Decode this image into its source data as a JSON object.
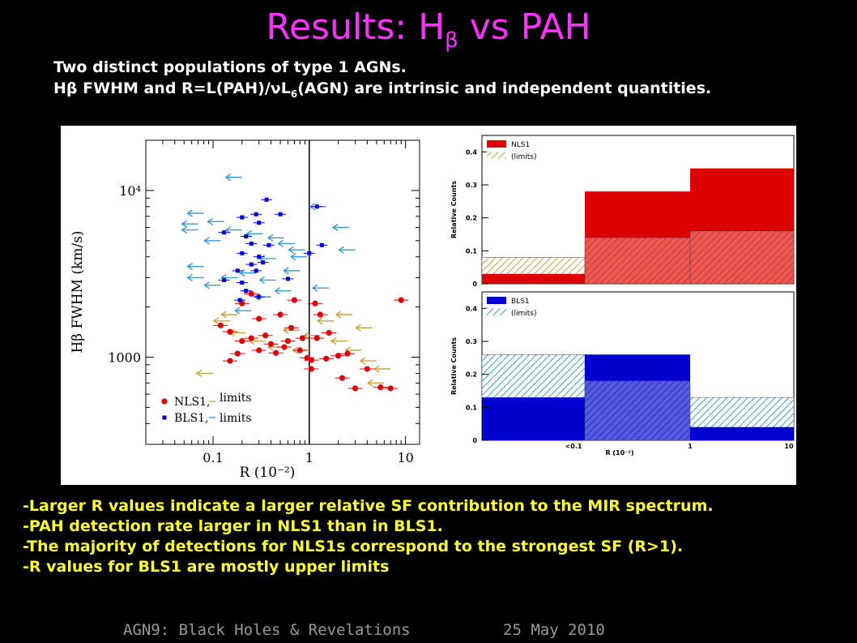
{
  "slide": {
    "title_main": "Results: H",
    "title_sub": "β",
    "title_tail": " vs PAH",
    "subtitle_line1": "Two distinct populations of type 1 AGNs.",
    "subtitle_line2_a": "H",
    "subtitle_line2_b": "β",
    "subtitle_line2_c": " FWHM and R=L(PAH)/νL",
    "subtitle_line2_d": "6",
    "subtitle_line2_e": "(AGN) are intrinsic and independent quantities.",
    "bullets": [
      "-Larger R values indicate a larger relative SF contribution to the MIR spectrum.",
      "-PAH detection rate larger in NLS1 than in BLS1.",
      "-The majority of detections for NLS1s correspond to the strongest SF (R>1).",
      "-R values for BLS1 are mostly upper limits"
    ],
    "footer_left": "AGN9: Black Holes & Revelations",
    "footer_right": "25 May 2010"
  },
  "colors": {
    "title": "#ff33ff",
    "bullets": "#ffff33",
    "nls1": "#dd0000",
    "bls1": "#0000cc",
    "nls1_limits": "#c8a040",
    "bls1_limits": "#3a9acd"
  },
  "chart_data": [
    {
      "type": "scatter",
      "xlabel": "R (10⁻²)",
      "ylabel": "Hβ FWHM (km/s)",
      "xscale": "log",
      "yscale": "log",
      "xlim": [
        0.02,
        14
      ],
      "ylim": [
        300,
        20000
      ],
      "xticklabels": [
        "0.1",
        "1",
        "10"
      ],
      "yticklabels": [
        "10⁴",
        "1000"
      ],
      "vline_x": 1,
      "legend": {
        "nls1": "NLS1,",
        "bls1": "BLS1,",
        "limits": "limits"
      },
      "series": [
        {
          "name": "NLS1",
          "points": [
            [
              0.2,
              2100
            ],
            [
              0.3,
              1700
            ],
            [
              0.5,
              1800
            ],
            [
              0.65,
              1500
            ],
            [
              0.12,
              1550
            ],
            [
              0.15,
              1420
            ],
            [
              0.25,
              1300
            ],
            [
              0.4,
              1200
            ],
            [
              0.55,
              1150
            ],
            [
              0.8,
              1100
            ],
            [
              0.2,
              1250
            ],
            [
              0.3,
              1100
            ],
            [
              0.18,
              1050
            ],
            [
              0.45,
              1060
            ],
            [
              0.95,
              990
            ],
            [
              1.05,
              960
            ],
            [
              1.5,
              980
            ],
            [
              2.0,
              1020
            ],
            [
              1.2,
              1300
            ],
            [
              1.6,
              1400
            ],
            [
              2.5,
              1050
            ],
            [
              0.7,
              2200
            ],
            [
              0.25,
              2400
            ],
            [
              1.15,
              2100
            ],
            [
              9.0,
              2200
            ],
            [
              3.0,
              650
            ],
            [
              5.5,
              660
            ],
            [
              0.6,
              1250
            ],
            [
              0.15,
              950
            ],
            [
              1.3,
              1800
            ],
            [
              0.85,
              1300
            ],
            [
              0.35,
              1350
            ],
            [
              1.05,
              850
            ],
            [
              2.2,
              750
            ],
            [
              7.0,
              650
            ],
            [
              4.0,
              850
            ]
          ],
          "upper_limits": [
            [
              0.15,
              1650
            ],
            [
              0.22,
              1400
            ],
            [
              0.35,
              1250
            ],
            [
              0.55,
              1150
            ],
            [
              0.8,
              1450
            ],
            [
              1.3,
              1350
            ],
            [
              1.8,
              1650
            ],
            [
              2.5,
              1250
            ],
            [
              3.5,
              1100
            ],
            [
              5.0,
              950
            ],
            [
              7.0,
              850
            ],
            [
              4.5,
              1500
            ],
            [
              0.1,
              800
            ],
            [
              0.18,
              1800
            ],
            [
              2.8,
              1800
            ],
            [
              1.0,
              1100
            ],
            [
              6.0,
              700
            ]
          ]
        },
        {
          "name": "BLS1",
          "points": [
            [
              0.2,
              6900
            ],
            [
              0.28,
              7200
            ],
            [
              0.36,
              8800
            ],
            [
              0.3,
              6400
            ],
            [
              0.5,
              7200
            ],
            [
              0.13,
              5600
            ],
            [
              0.22,
              5300
            ],
            [
              0.25,
              4800
            ],
            [
              0.38,
              4700
            ],
            [
              0.2,
              4200
            ],
            [
              0.3,
              4000
            ],
            [
              1.0,
              4200
            ],
            [
              1.35,
              4700
            ],
            [
              0.25,
              3600
            ],
            [
              0.33,
              3700
            ],
            [
              0.18,
              3300
            ],
            [
              0.28,
              3300
            ],
            [
              0.13,
              2900
            ],
            [
              0.2,
              2800
            ],
            [
              0.6,
              2950
            ],
            [
              0.22,
              2500
            ],
            [
              0.3,
              2300
            ],
            [
              0.19,
              2200
            ],
            [
              1.2,
              8000
            ]
          ],
          "upper_limits": [
            [
              0.2,
              12000
            ],
            [
              0.08,
              7300
            ],
            [
              0.07,
              6300
            ],
            [
              0.07,
              5800
            ],
            [
              0.13,
              6500
            ],
            [
              0.2,
              5800
            ],
            [
              0.12,
              5000
            ],
            [
              0.33,
              5500
            ],
            [
              0.55,
              5200
            ],
            [
              0.7,
              4800
            ],
            [
              0.45,
              3900
            ],
            [
              0.28,
              3200
            ],
            [
              0.18,
              3000
            ],
            [
              0.08,
              3500
            ],
            [
              0.08,
              3000
            ],
            [
              0.12,
              2700
            ],
            [
              0.45,
              2900
            ],
            [
              0.65,
              2500
            ],
            [
              0.8,
              3300
            ],
            [
              0.9,
              4400
            ],
            [
              0.95,
              4000
            ],
            [
              1.6,
              2600
            ],
            [
              1.5,
              8000
            ],
            [
              2.6,
              6000
            ],
            [
              3.0,
              4400
            ],
            [
              0.25,
              1900
            ],
            [
              0.4,
              2300
            ]
          ]
        }
      ]
    },
    {
      "type": "bar",
      "legend": [
        "NLS1",
        "(limits)"
      ],
      "ylabel": "Relative Counts",
      "ylim": [
        0,
        0.45
      ],
      "yticks": [
        "0",
        "0.1",
        "0.2",
        "0.3",
        "0.4"
      ],
      "bins": [
        "<0.1",
        "0.1-1",
        ">1"
      ],
      "detections": [
        0.03,
        0.28,
        0.35
      ],
      "limits": [
        0.08,
        0.14,
        0.16
      ]
    },
    {
      "type": "bar",
      "legend": [
        "BLS1",
        "(limits)"
      ],
      "ylabel": "Relative Counts",
      "xlabel": "R (10⁻²)",
      "xticklabels": [
        "<0.1",
        "1",
        "10"
      ],
      "ylim": [
        0,
        0.45
      ],
      "yticks": [
        "0",
        "0.1",
        "0.2",
        "0.3",
        "0.4"
      ],
      "bins": [
        "<0.1",
        "0.1-1",
        ">1"
      ],
      "detections": [
        0.13,
        0.26,
        0.04
      ],
      "limits": [
        0.26,
        0.18,
        0.13
      ]
    }
  ]
}
